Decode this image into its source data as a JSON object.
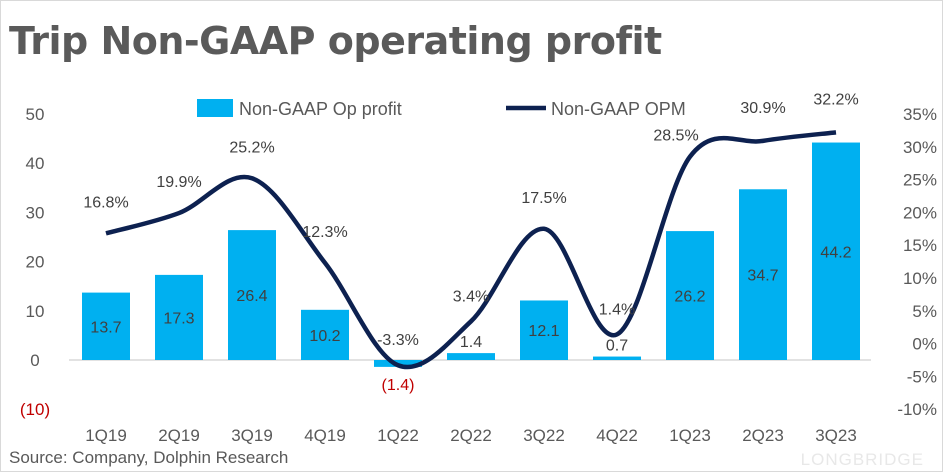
{
  "title": "Trip Non-GAAP operating profit",
  "source": "Source: Company, Dolphin Research",
  "watermark": "LONGBRIDGE",
  "colors": {
    "bar": "#00b0f0",
    "line": "#0d2150",
    "negative": "#c00000",
    "text": "#595959"
  },
  "chart_data": {
    "type": "bar+line",
    "title": "Trip Non-GAAP operating profit",
    "categories": [
      "1Q19",
      "2Q19",
      "3Q19",
      "4Q19",
      "1Q22",
      "2Q22",
      "3Q22",
      "4Q22",
      "1Q23",
      "2Q23",
      "3Q23"
    ],
    "series": [
      {
        "name": "Non-GAAP Op profit",
        "type": "bar",
        "axis": "left",
        "values": [
          13.7,
          17.3,
          26.4,
          10.2,
          -1.4,
          1.4,
          12.1,
          0.7,
          26.2,
          34.7,
          44.2
        ],
        "labels": [
          "13.7",
          "17.3",
          "26.4",
          "10.2",
          "(1.4)",
          "1.4",
          "12.1",
          "0.7",
          "26.2",
          "34.7",
          "44.2"
        ]
      },
      {
        "name": "Non-GAAP OPM",
        "type": "line",
        "axis": "right",
        "values": [
          16.8,
          19.9,
          25.2,
          12.3,
          -3.3,
          3.4,
          17.5,
          1.4,
          28.5,
          30.9,
          32.2
        ],
        "labels": [
          "16.8%",
          "19.9%",
          "25.2%",
          "12.3%",
          "-3.3%",
          "3.4%",
          "17.5%",
          "1.4%",
          "28.5%",
          "30.9%",
          "32.2%"
        ]
      }
    ],
    "left_axis": {
      "ylim": [
        -10,
        50
      ],
      "ticks": [
        "(10)",
        "0",
        "10",
        "20",
        "30",
        "40",
        "50"
      ]
    },
    "right_axis": {
      "ylim": [
        -10,
        35
      ],
      "ticks": [
        "-10%",
        "-5%",
        "0%",
        "5%",
        "10%",
        "15%",
        "20%",
        "25%",
        "30%",
        "35%"
      ]
    },
    "legend": "top",
    "grid": false
  }
}
